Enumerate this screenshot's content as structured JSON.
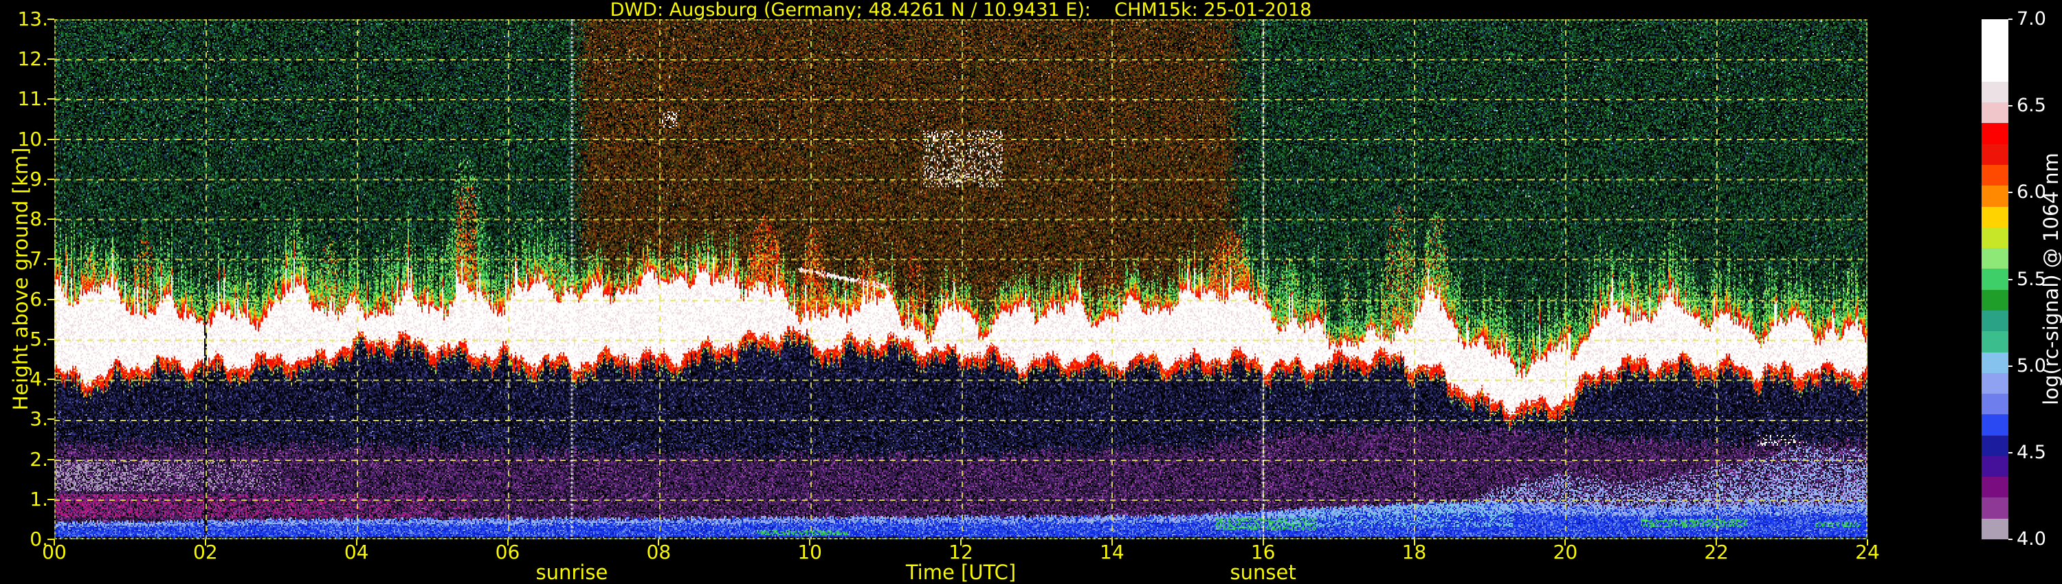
{
  "title": "DWD: Augsburg (Germany; 48.4261 N / 10.9431 E):    CHM15k: 25-01-2018",
  "axes": {
    "x": {
      "label": "Time [UTC]",
      "ticks": [
        "00",
        "02",
        "04",
        "06",
        "08",
        "10",
        "12",
        "14",
        "16",
        "18",
        "20",
        "22",
        "24"
      ],
      "tick_values": [
        0,
        2,
        4,
        6,
        8,
        10,
        12,
        14,
        16,
        18,
        20,
        22,
        24
      ],
      "range": [
        0,
        24
      ]
    },
    "y": {
      "label": "Height above ground [km]",
      "ticks": [
        "0.",
        "1.",
        "2.",
        "3.",
        "4.",
        "5.",
        "6.",
        "7.",
        "8.",
        "9.",
        "10.",
        "11.",
        "12.",
        "13."
      ],
      "tick_values": [
        0,
        1,
        2,
        3,
        4,
        5,
        6,
        7,
        8,
        9,
        10,
        11,
        12,
        13
      ],
      "range": [
        0,
        13
      ]
    }
  },
  "annotations": {
    "sunrise": {
      "label": "sunrise",
      "time_utc": 6.85
    },
    "sunset": {
      "label": "sunset",
      "time_utc": 16.0
    }
  },
  "colorbar": {
    "label": "log(rc-signal) @ 1064 nm",
    "ticks": [
      "7.0",
      "6.5",
      "6.0",
      "5.5",
      "5.0",
      "4.5",
      "4.0"
    ],
    "tick_values": [
      7.0,
      6.5,
      6.0,
      5.5,
      5.0,
      4.5,
      4.0
    ],
    "range": [
      4.0,
      7.0
    ],
    "colors_top_to_bottom": [
      "#ffffff",
      "#ffffff",
      "#ffffff",
      "#ece2e6",
      "#f0c6ca",
      "#fd0000",
      "#ee1408",
      "#fe4a00",
      "#ff8900",
      "#ffd300",
      "#c8e628",
      "#8de878",
      "#3ecf69",
      "#1f9e2a",
      "#2aa285",
      "#3cbd8e",
      "#86c2ee",
      "#8fa2f1",
      "#6e7eec",
      "#2b49f2",
      "#1c1d9e",
      "#45109a",
      "#7a0e80",
      "#8f3996",
      "#ada0b5"
    ]
  },
  "colors": {
    "background": "#000000",
    "axis_text": "#f8f800",
    "grid": "#e4e446",
    "sun_line": "#ffffff",
    "colorbar_text": "#ffffff"
  },
  "chart_data": {
    "type": "heatmap",
    "title": "DWD: Augsburg (Germany; 48.4261 N / 10.9431 E):    CHM15k: 25-01-2018",
    "xlabel": "Time [UTC]",
    "ylabel": "Height above ground [km]",
    "value_label": "log(rc-signal) @ 1064 nm",
    "x_range_h": [
      0,
      24
    ],
    "y_range_km": [
      0,
      13
    ],
    "value_range": [
      4.0,
      7.0
    ],
    "sunrise_utc": 6.85,
    "sunset_utc": 16.0,
    "daylight": {
      "start": 6.85,
      "full": 7.1,
      "fade": 15.45,
      "end": 15.8
    },
    "gap_time": 2.0,
    "cloud_band": {
      "time_h": [
        0,
        0.5,
        1,
        1.5,
        2,
        2.5,
        3,
        3.3,
        3.7,
        4,
        4.5,
        5,
        5.4,
        5.8,
        6.2,
        6.6,
        7,
        7.5,
        8,
        8.3,
        8.7,
        9,
        9.3,
        9.7,
        10,
        10.4,
        10.8,
        11.2,
        11.6,
        12,
        12.3,
        12.7,
        13,
        13.5,
        14,
        14.5,
        15,
        15.5,
        16,
        16.5,
        17,
        17.5,
        18,
        18.3,
        18.6,
        19,
        19.5,
        20,
        20.5,
        21,
        21.5,
        22,
        22.5,
        23,
        23.5,
        24
      ],
      "white_base_km": [
        4.2,
        4.0,
        4.3,
        4.4,
        4.4,
        4.3,
        4.6,
        4.4,
        4.7,
        4.9,
        5.0,
        4.8,
        4.7,
        4.6,
        4.5,
        4.4,
        4.4,
        4.6,
        4.5,
        4.6,
        4.8,
        4.9,
        5.0,
        5.2,
        4.9,
        4.8,
        5.0,
        4.9,
        4.7,
        4.6,
        4.7,
        4.4,
        4.4,
        4.5,
        4.4,
        4.5,
        4.4,
        4.6,
        4.4,
        4.3,
        4.5,
        4.6,
        4.4,
        4.2,
        3.8,
        3.4,
        3.3,
        3.5,
        4.3,
        4.4,
        4.4,
        4.4,
        4.2,
        4.2,
        4.2,
        4.2
      ],
      "white_top_km": [
        6.1,
        6.3,
        5.9,
        5.7,
        5.6,
        5.5,
        5.9,
        6.3,
        5.6,
        5.7,
        5.9,
        5.8,
        6.1,
        5.9,
        6.2,
        6.4,
        6.0,
        6.3,
        6.4,
        6.7,
        6.3,
        6.6,
        6.2,
        6.0,
        5.6,
        5.5,
        6.2,
        5.5,
        5.3,
        5.8,
        5.3,
        5.6,
        5.8,
        5.7,
        5.6,
        5.8,
        6.0,
        6.3,
        5.8,
        5.3,
        5.0,
        4.9,
        5.6,
        6.0,
        5.2,
        4.6,
        4.4,
        4.6,
        5.5,
        5.7,
        5.8,
        5.5,
        5.2,
        5.4,
        5.2,
        5.1
      ]
    },
    "events": [
      {
        "t0": 0.35,
        "t1": 0.6,
        "top_km": 7.2,
        "type": "red"
      },
      {
        "t0": 1.05,
        "t1": 1.35,
        "top_km": 7.9,
        "type": "red_faint"
      },
      {
        "t0": 3.45,
        "t1": 3.85,
        "top_km": 7.6,
        "type": "green_red"
      },
      {
        "t0": 5.15,
        "t1": 5.75,
        "top_km": 9.6,
        "type": "plume"
      },
      {
        "t0": 6.45,
        "t1": 6.9,
        "top_km": 7.3,
        "type": "green"
      },
      {
        "t0": 9.15,
        "t1": 9.65,
        "top_km": 8.1,
        "type": "red"
      },
      {
        "t0": 9.85,
        "t1": 10.25,
        "top_km": 7.8,
        "type": "red"
      },
      {
        "t0": 10.55,
        "t1": 10.95,
        "top_km": 7.1,
        "type": "red"
      },
      {
        "t0": 11.25,
        "t1": 11.55,
        "top_km": 7.5,
        "type": "red_faint"
      },
      {
        "t0": 13.85,
        "t1": 14.15,
        "top_km": 6.9,
        "type": "red_faint"
      },
      {
        "t0": 15.25,
        "t1": 15.85,
        "top_km": 7.8,
        "type": "red"
      },
      {
        "t0": 16.15,
        "t1": 16.55,
        "top_km": 7.1,
        "type": "green"
      },
      {
        "t0": 17.05,
        "t1": 17.2,
        "top_km": 8.0,
        "type": "green_thin"
      },
      {
        "t0": 17.55,
        "t1": 18.05,
        "top_km": 8.4,
        "type": "green_red"
      },
      {
        "t0": 18.1,
        "t1": 18.5,
        "top_km": 8.2,
        "type": "green_red"
      },
      {
        "t0": 21.1,
        "t1": 21.25,
        "top_km": 6.3,
        "type": "green_thin"
      },
      {
        "t0": 22.6,
        "t1": 22.9,
        "top_km": 6.1,
        "type": "green_thin"
      }
    ],
    "white_specks": [
      {
        "t0": 11.5,
        "t1": 12.55,
        "h0": 8.8,
        "h1": 10.2
      },
      {
        "t0": 8.05,
        "t1": 8.25,
        "h0": 10.3,
        "h1": 10.7
      },
      {
        "t0": 22.55,
        "t1": 23.1,
        "h0": 2.35,
        "h1": 2.6
      }
    ],
    "cloud_line": {
      "t0": 9.85,
      "t1": 11.05,
      "h_start": 6.75,
      "h_end": 6.3,
      "thickness": 0.12
    },
    "ground_green": [
      {
        "t0": 15.35,
        "t1": 16.7,
        "h0": 0.25,
        "h1": 0.55
      },
      {
        "t0": 21.0,
        "t1": 22.4,
        "h0": 0.3,
        "h1": 0.5
      },
      {
        "t0": 23.3,
        "t1": 23.9,
        "h0": 0.3,
        "h1": 0.45
      },
      {
        "t0": 9.3,
        "t1": 10.5,
        "h0": 0.1,
        "h1": 0.25
      },
      {
        "t0": 22.95,
        "t1": 23.35,
        "h0": 1.8,
        "h1": 2.1
      }
    ],
    "layers": {
      "blue_top": [
        [
          0,
          0.42
        ],
        [
          3,
          0.5
        ],
        [
          6,
          0.52
        ],
        [
          10,
          0.55
        ],
        [
          15,
          0.6
        ],
        [
          16.3,
          0.75
        ],
        [
          17.5,
          0.85
        ],
        [
          18.5,
          0.95
        ],
        [
          19.5,
          0.9
        ],
        [
          21,
          0.8
        ],
        [
          22.5,
          0.85
        ],
        [
          24,
          0.9
        ]
      ],
      "light_start": 18.8,
      "light_top": [
        [
          18.8,
          1.05
        ],
        [
          19.5,
          1.5
        ],
        [
          20,
          1.7
        ],
        [
          20.7,
          1.4
        ],
        [
          21.3,
          1.5
        ],
        [
          22,
          1.8
        ],
        [
          22.7,
          2.1
        ],
        [
          23.2,
          2.4
        ],
        [
          23.6,
          2.2
        ],
        [
          24,
          2.3
        ]
      ],
      "purple_top": [
        [
          0,
          2.4
        ],
        [
          4,
          2.35
        ],
        [
          8,
          2.1
        ],
        [
          12,
          2.1
        ],
        [
          15,
          2.3
        ],
        [
          16.5,
          2.7
        ],
        [
          18,
          2.8
        ],
        [
          20,
          2.6
        ],
        [
          22,
          2.4
        ],
        [
          24,
          2.4
        ]
      ],
      "magenta_strip": {
        "t1": 5.5,
        "h0": 0.55,
        "h1": 1.15
      },
      "lavender_patch": {
        "t1": 3.0,
        "h0": 1.2,
        "h1": 2.0
      }
    },
    "palettes": {
      "night_bg": [
        [
          "#000000",
          26
        ],
        [
          "#06200c",
          13
        ],
        [
          "#0c3a15",
          16
        ],
        [
          "#145220",
          13
        ],
        [
          "#1c6e2c",
          9
        ],
        [
          "#279140",
          4
        ],
        [
          "#17635a",
          6
        ],
        [
          "#12294a",
          6
        ],
        [
          "#1a3a6e",
          3
        ],
        [
          "#070710",
          6
        ],
        [
          "#39b44a",
          1.5
        ],
        [
          "#3fb0c8",
          0.7
        ],
        [
          "#c8d0e0",
          0.25
        ]
      ],
      "day_bg": [
        [
          "#000000",
          18
        ],
        [
          "#221302",
          12
        ],
        [
          "#3a2005",
          13
        ],
        [
          "#533008",
          13
        ],
        [
          "#6e4009",
          11
        ],
        [
          "#8a5210",
          7
        ],
        [
          "#7a1c08",
          7
        ],
        [
          "#a06616",
          4
        ],
        [
          "#344012",
          6
        ],
        [
          "#1f4a16",
          5
        ],
        [
          "#0e2a0a",
          3
        ],
        [
          "#c08030",
          1.5
        ],
        [
          "#d8d0c8",
          0.4
        ],
        [
          "#3a3a3a",
          2
        ]
      ],
      "navy": [
        [
          "#000000",
          36
        ],
        [
          "#0d0d28",
          18
        ],
        [
          "#171740",
          17
        ],
        [
          "#212158",
          12
        ],
        [
          "#2d2d75",
          8
        ],
        [
          "#3f3f96",
          4.5
        ],
        [
          "#5858b0",
          2.5
        ],
        [
          "#8585cc",
          1.2
        ],
        [
          "#23305c",
          4
        ]
      ],
      "purple_layer": [
        [
          "#000000",
          17
        ],
        [
          "#261038",
          15
        ],
        [
          "#36194f",
          18
        ],
        [
          "#482263",
          16
        ],
        [
          "#5d2a7b",
          11
        ],
        [
          "#722f8e",
          8
        ],
        [
          "#8d3a9e",
          5
        ],
        [
          "#a44fae",
          3
        ],
        [
          "#2d1f46",
          6
        ]
      ],
      "magenta": [
        [
          "#a6187e",
          55
        ],
        [
          "#c02290",
          25
        ],
        [
          "#8a1066",
          20
        ]
      ],
      "lavender": [
        [
          "#a596b5",
          50
        ],
        [
          "#b8abc6",
          28
        ],
        [
          "#8d7ea2",
          22
        ]
      ],
      "blue_layer": [
        [
          "#1026dc",
          26
        ],
        [
          "#1b3df2",
          26
        ],
        [
          "#3355ea",
          20
        ],
        [
          "#5578ee",
          14
        ],
        [
          "#7f9cf2",
          9
        ],
        [
          "#0a18a0",
          5
        ]
      ],
      "light_layer": [
        [
          "#93a6f2",
          38
        ],
        [
          "#a9b8f5",
          26
        ],
        [
          "#7e97ee",
          20
        ],
        [
          "#86c2ee",
          16
        ]
      ],
      "green_spot": [
        [
          "#35c45f",
          60
        ],
        [
          "#2aa84c",
          25
        ],
        [
          "#67d984",
          15
        ]
      ],
      "ground_green": [
        [
          "#123818",
          45
        ],
        [
          "#1c5826",
          30
        ],
        [
          "#0a2410",
          25
        ]
      ],
      "white_core": [
        [
          "#ffffff",
          72
        ],
        [
          "#f3e7ea",
          16
        ],
        [
          "#eddade",
          12
        ]
      ],
      "red_zone": [
        [
          "#fc0d00",
          52
        ],
        [
          "#e81408",
          26
        ],
        [
          "#ff3d00",
          22
        ]
      ],
      "orange_zone": [
        [
          "#ff4d00",
          38
        ],
        [
          "#ff8900",
          46
        ],
        [
          "#ffb300",
          16
        ]
      ],
      "yellow_zone": [
        [
          "#ffd300",
          50
        ],
        [
          "#ffaa00",
          22
        ],
        [
          "#cde32c",
          28
        ]
      ],
      "green_fringe": [
        [
          "#b9e430",
          16
        ],
        [
          "#8de878",
          20
        ],
        [
          "#53d96f",
          24
        ],
        [
          "#2cb84a",
          22
        ],
        [
          "#1f9e2a",
          18
        ]
      ],
      "event_red": [
        [
          "#ee1408",
          28
        ],
        [
          "#fd2f00",
          26
        ],
        [
          "#ff6f00",
          24
        ],
        [
          "#ff9900",
          13
        ],
        [
          "#ffd300",
          9
        ]
      ],
      "speck_white": [
        [
          "#ffffff",
          68
        ],
        [
          "#f0c6ca",
          32
        ]
      ]
    },
    "palettes_single": {
      "cyan": "#74c8e6"
    }
  }
}
